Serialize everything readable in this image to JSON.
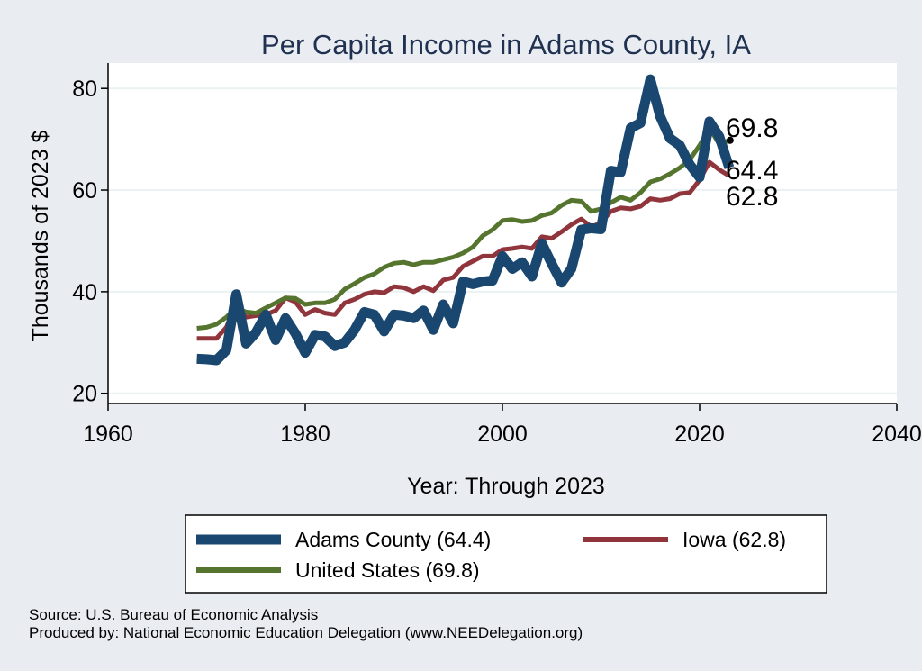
{
  "chart_data": {
    "type": "line",
    "title": "Per Capita Income in Adams County, IA",
    "xlabel": "Year: Through 2023",
    "ylabel": "Thousands of 2023 $",
    "xlim": [
      1960,
      2040
    ],
    "ylim": [
      18,
      85
    ],
    "xticks": [
      1960,
      1980,
      2000,
      2020,
      2040
    ],
    "yticks": [
      20,
      40,
      60,
      80
    ],
    "grid": true,
    "legend_position": "bottom",
    "x": [
      1969,
      1970,
      1971,
      1972,
      1973,
      1974,
      1975,
      1976,
      1977,
      1978,
      1979,
      1980,
      1981,
      1982,
      1983,
      1984,
      1985,
      1986,
      1987,
      1988,
      1989,
      1990,
      1991,
      1992,
      1993,
      1994,
      1995,
      1996,
      1997,
      1998,
      1999,
      2000,
      2001,
      2002,
      2003,
      2004,
      2005,
      2006,
      2007,
      2008,
      2009,
      2010,
      2011,
      2012,
      2013,
      2014,
      2015,
      2016,
      2017,
      2018,
      2019,
      2020,
      2021,
      2022,
      2023
    ],
    "series": [
      {
        "name": "Adams County (64.4)",
        "color": "#1a476f",
        "values": [
          26.8,
          26.7,
          26.5,
          28.5,
          39.5,
          29.8,
          32.0,
          35.5,
          30.5,
          34.8,
          31.8,
          28.0,
          31.5,
          31.2,
          29.3,
          30.0,
          32.5,
          36.0,
          35.5,
          32.2,
          35.5,
          35.3,
          34.8,
          36.3,
          32.5,
          37.5,
          33.8,
          42.0,
          41.5,
          42.0,
          42.2,
          47.0,
          44.5,
          45.8,
          43.0,
          49.5,
          45.5,
          41.8,
          44.5,
          52.2,
          52.5,
          52.3,
          63.8,
          63.5,
          72.2,
          73.2,
          81.8,
          74.5,
          70.2,
          68.8,
          65.0,
          62.5,
          73.5,
          70.5,
          64.4
        ]
      },
      {
        "name": "Iowa (62.8)",
        "color": "#90353b",
        "values": [
          30.8,
          30.8,
          30.8,
          33.0,
          37.8,
          35.0,
          35.3,
          35.5,
          36.3,
          38.8,
          38.0,
          35.5,
          36.5,
          35.8,
          35.5,
          37.8,
          38.5,
          39.5,
          40.0,
          39.8,
          41.0,
          40.8,
          40.0,
          41.0,
          40.2,
          42.3,
          42.8,
          45.0,
          46.0,
          47.0,
          47.0,
          48.3,
          48.5,
          48.8,
          48.5,
          50.8,
          50.5,
          51.8,
          53.2,
          54.3,
          52.8,
          53.5,
          55.8,
          56.5,
          56.3,
          56.8,
          58.3,
          58.0,
          58.3,
          59.3,
          59.5,
          62.0,
          65.5,
          64.0,
          62.8
        ]
      },
      {
        "name": "United States (69.8)",
        "color": "#55752f",
        "values": [
          32.8,
          33.0,
          33.6,
          35.0,
          36.8,
          36.0,
          35.8,
          36.8,
          37.8,
          38.8,
          38.7,
          37.5,
          37.8,
          37.8,
          38.5,
          40.5,
          41.6,
          42.8,
          43.5,
          44.8,
          45.6,
          45.8,
          45.3,
          45.8,
          45.8,
          46.3,
          46.8,
          47.6,
          48.8,
          51.0,
          52.2,
          54.0,
          54.2,
          53.8,
          54.0,
          55.0,
          55.5,
          57.0,
          58.0,
          57.8,
          55.8,
          56.3,
          57.5,
          58.6,
          58.0,
          59.5,
          61.6,
          62.2,
          63.2,
          64.4,
          66.0,
          68.8,
          72.3,
          69.0,
          69.8
        ]
      }
    ],
    "end_labels": [
      "69.8",
      "64.4",
      "62.8"
    ],
    "legend": {
      "adams": "Adams County (64.4)",
      "iowa": "Iowa (62.8)",
      "us": "United States (69.8)"
    },
    "notes": {
      "source": "Source: U.S. Bureau of Economic Analysis",
      "produced": "Produced by: National Economic Education Delegation (www.NEEDelegation.org)"
    }
  }
}
